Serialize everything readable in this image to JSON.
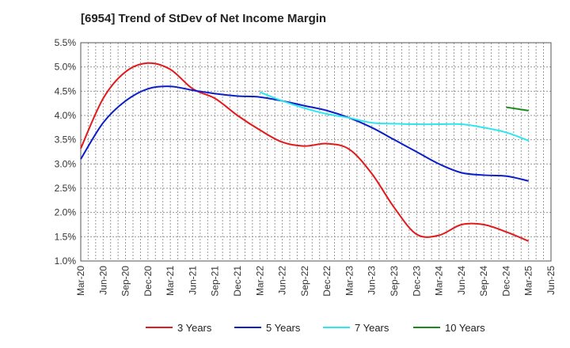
{
  "chart_data": {
    "type": "line",
    "title": "[6954]  Trend of StDev of Net Income Margin",
    "x_categories": [
      "Mar-20",
      "Jun-20",
      "Sep-20",
      "Dec-20",
      "Mar-21",
      "Jun-21",
      "Sep-21",
      "Dec-21",
      "Mar-22",
      "Jun-22",
      "Sep-22",
      "Dec-22",
      "Mar-23",
      "Jun-23",
      "Sep-23",
      "Dec-23",
      "Mar-24",
      "Jun-24",
      "Sep-24",
      "Dec-24",
      "Mar-25",
      "Jun-25"
    ],
    "y_ticks": [
      "1.0%",
      "1.5%",
      "2.0%",
      "2.5%",
      "3.0%",
      "3.5%",
      "4.0%",
      "4.5%",
      "5.0%",
      "5.5%"
    ],
    "ylim": [
      1.0,
      5.5
    ],
    "grid": true,
    "legend_position": "bottom",
    "series": [
      {
        "name": "3 Years",
        "color": "#e31a1c",
        "x": [
          "Mar-20",
          "Jun-20",
          "Sep-20",
          "Dec-20",
          "Mar-21",
          "Jun-21",
          "Sep-21",
          "Dec-21",
          "Mar-22",
          "Jun-22",
          "Sep-22",
          "Dec-22",
          "Mar-23",
          "Jun-23",
          "Sep-23",
          "Dec-23",
          "Mar-24",
          "Jun-24",
          "Sep-24",
          "Dec-24",
          "Mar-25"
        ],
        "values": [
          3.32,
          4.35,
          4.9,
          5.08,
          4.95,
          4.55,
          4.35,
          4.0,
          3.7,
          3.45,
          3.37,
          3.42,
          3.3,
          2.8,
          2.1,
          1.55,
          1.53,
          1.75,
          1.75,
          1.6,
          1.41
        ]
      },
      {
        "name": "5 Years",
        "color": "#0b1fc8",
        "x": [
          "Mar-20",
          "Jun-20",
          "Sep-20",
          "Dec-20",
          "Mar-21",
          "Jun-21",
          "Sep-21",
          "Dec-21",
          "Mar-22",
          "Jun-22",
          "Sep-22",
          "Dec-22",
          "Mar-23",
          "Jun-23",
          "Sep-23",
          "Dec-23",
          "Mar-24",
          "Jun-24",
          "Sep-24",
          "Dec-24",
          "Mar-25"
        ],
        "values": [
          3.1,
          3.85,
          4.3,
          4.55,
          4.6,
          4.52,
          4.45,
          4.4,
          4.38,
          4.3,
          4.2,
          4.1,
          3.95,
          3.75,
          3.5,
          3.25,
          3.0,
          2.82,
          2.77,
          2.75,
          2.65
        ]
      },
      {
        "name": "7 Years",
        "color": "#2ee6ee",
        "x": [
          "Mar-22",
          "Jun-22",
          "Sep-22",
          "Dec-22",
          "Mar-23",
          "Jun-23",
          "Sep-23",
          "Dec-23",
          "Mar-24",
          "Jun-24",
          "Sep-24",
          "Dec-24",
          "Mar-25"
        ],
        "values": [
          4.48,
          4.3,
          4.15,
          4.03,
          3.95,
          3.85,
          3.83,
          3.82,
          3.82,
          3.82,
          3.75,
          3.65,
          3.48
        ]
      },
      {
        "name": "10 Years",
        "color": "#1b8a1b",
        "x": [
          "Dec-24",
          "Mar-25"
        ],
        "values": [
          4.17,
          4.1
        ]
      }
    ]
  }
}
